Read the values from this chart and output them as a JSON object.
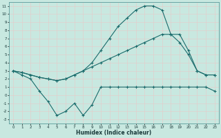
{
  "xlabel": "Humidex (Indice chaleur)",
  "background_color": "#c8e8e0",
  "grid_color": "#e8c8c8",
  "line_color": "#1a6b6b",
  "xlim": [
    -0.5,
    23.5
  ],
  "ylim": [
    -3.5,
    11.5
  ],
  "xticks": [
    0,
    1,
    2,
    3,
    4,
    5,
    6,
    7,
    8,
    9,
    10,
    11,
    12,
    13,
    14,
    15,
    16,
    17,
    18,
    19,
    20,
    21,
    22,
    23
  ],
  "yticks": [
    -3,
    -2,
    -1,
    0,
    1,
    2,
    3,
    4,
    5,
    6,
    7,
    8,
    9,
    10,
    11
  ],
  "line_top_x": [
    0,
    1,
    2,
    3,
    4,
    5,
    6,
    7,
    8,
    9,
    10,
    11,
    12,
    13,
    14,
    15,
    16,
    17,
    18,
    19,
    20,
    21,
    22,
    23
  ],
  "line_top_y": [
    3.0,
    2.8,
    2.5,
    2.2,
    2.0,
    1.8,
    2.0,
    2.5,
    3.0,
    4.0,
    5.5,
    7.0,
    8.5,
    9.5,
    10.5,
    11.0,
    11.0,
    10.5,
    7.5,
    6.5,
    5.0,
    3.0,
    2.5,
    2.5
  ],
  "line_mid_x": [
    0,
    1,
    2,
    3,
    4,
    5,
    6,
    7,
    8,
    9,
    10,
    11,
    12,
    13,
    14,
    15,
    16,
    17,
    18,
    19,
    20,
    21,
    22,
    23
  ],
  "line_mid_y": [
    3.0,
    2.8,
    2.5,
    2.2,
    2.0,
    1.8,
    2.0,
    2.5,
    3.0,
    3.5,
    4.0,
    4.5,
    5.0,
    5.5,
    6.0,
    6.5,
    7.0,
    7.5,
    7.5,
    7.5,
    5.5,
    3.0,
    2.5,
    2.5
  ],
  "line_bot_x": [
    0,
    1,
    2,
    3,
    4,
    5,
    6,
    7,
    8,
    9,
    10,
    11,
    12,
    13,
    14,
    15,
    16,
    17,
    18,
    19,
    20,
    21,
    22,
    23
  ],
  "line_bot_y": [
    3.0,
    2.5,
    2.0,
    0.5,
    -0.8,
    -2.5,
    -2.0,
    -1.0,
    -2.5,
    -1.2,
    1.0,
    1.0,
    1.0,
    1.0,
    1.0,
    1.0,
    1.0,
    1.0,
    1.0,
    1.0,
    1.0,
    1.0,
    1.0,
    0.5
  ]
}
